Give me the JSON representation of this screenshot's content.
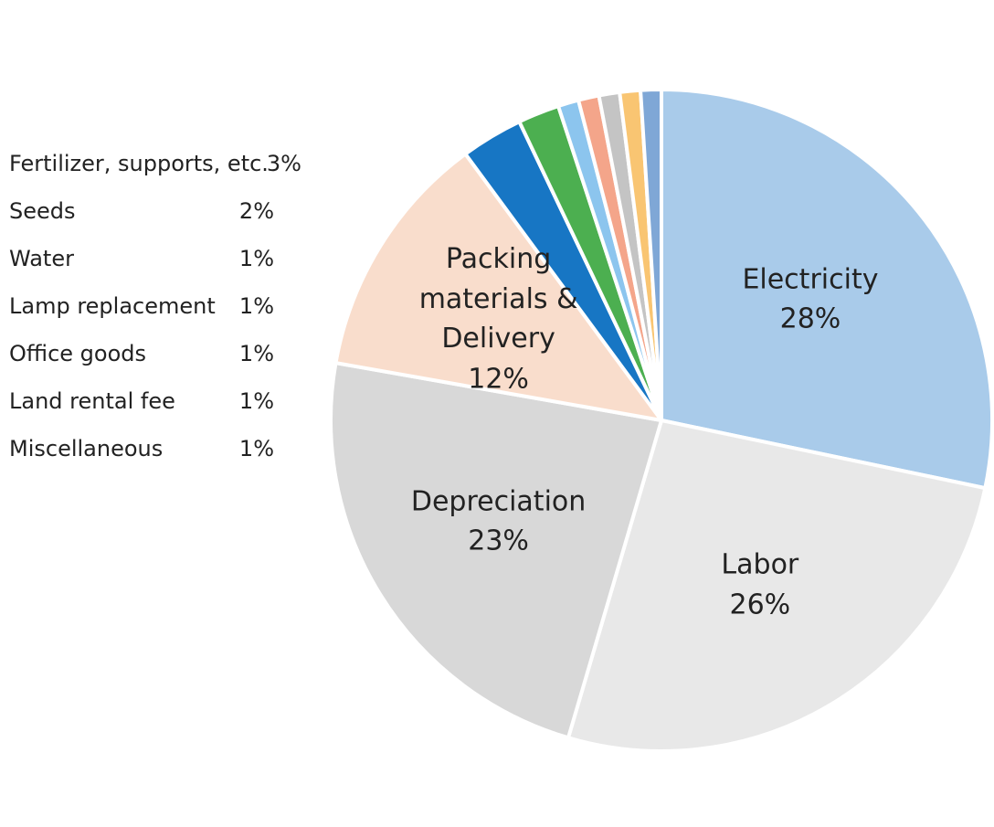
{
  "chart_data": {
    "type": "pie",
    "categories": [
      "Electricity",
      "Labor",
      "Depreciation",
      "Packing materials & Delivery",
      "Fertilizer, supports, etc.",
      "Seeds",
      "Water",
      "Lamp replacement",
      "Office goods",
      "Land rental fee",
      "Miscellaneous"
    ],
    "values": [
      28,
      26,
      23,
      12,
      3,
      2,
      1,
      1,
      1,
      1,
      1
    ],
    "value_labels": [
      "28%",
      "26%",
      "23%",
      "12%",
      "3%",
      "2%",
      "1%",
      "1%",
      "1%",
      "1%",
      "1%"
    ],
    "colors": [
      "#a9cbea",
      "#e8e8e8",
      "#d8d8d8",
      "#f9ddcc",
      "#1776c4",
      "#4caf50",
      "#8cc5ee",
      "#f4a58a",
      "#c4c4c4",
      "#f9c572",
      "#7fa7d6"
    ]
  }
}
